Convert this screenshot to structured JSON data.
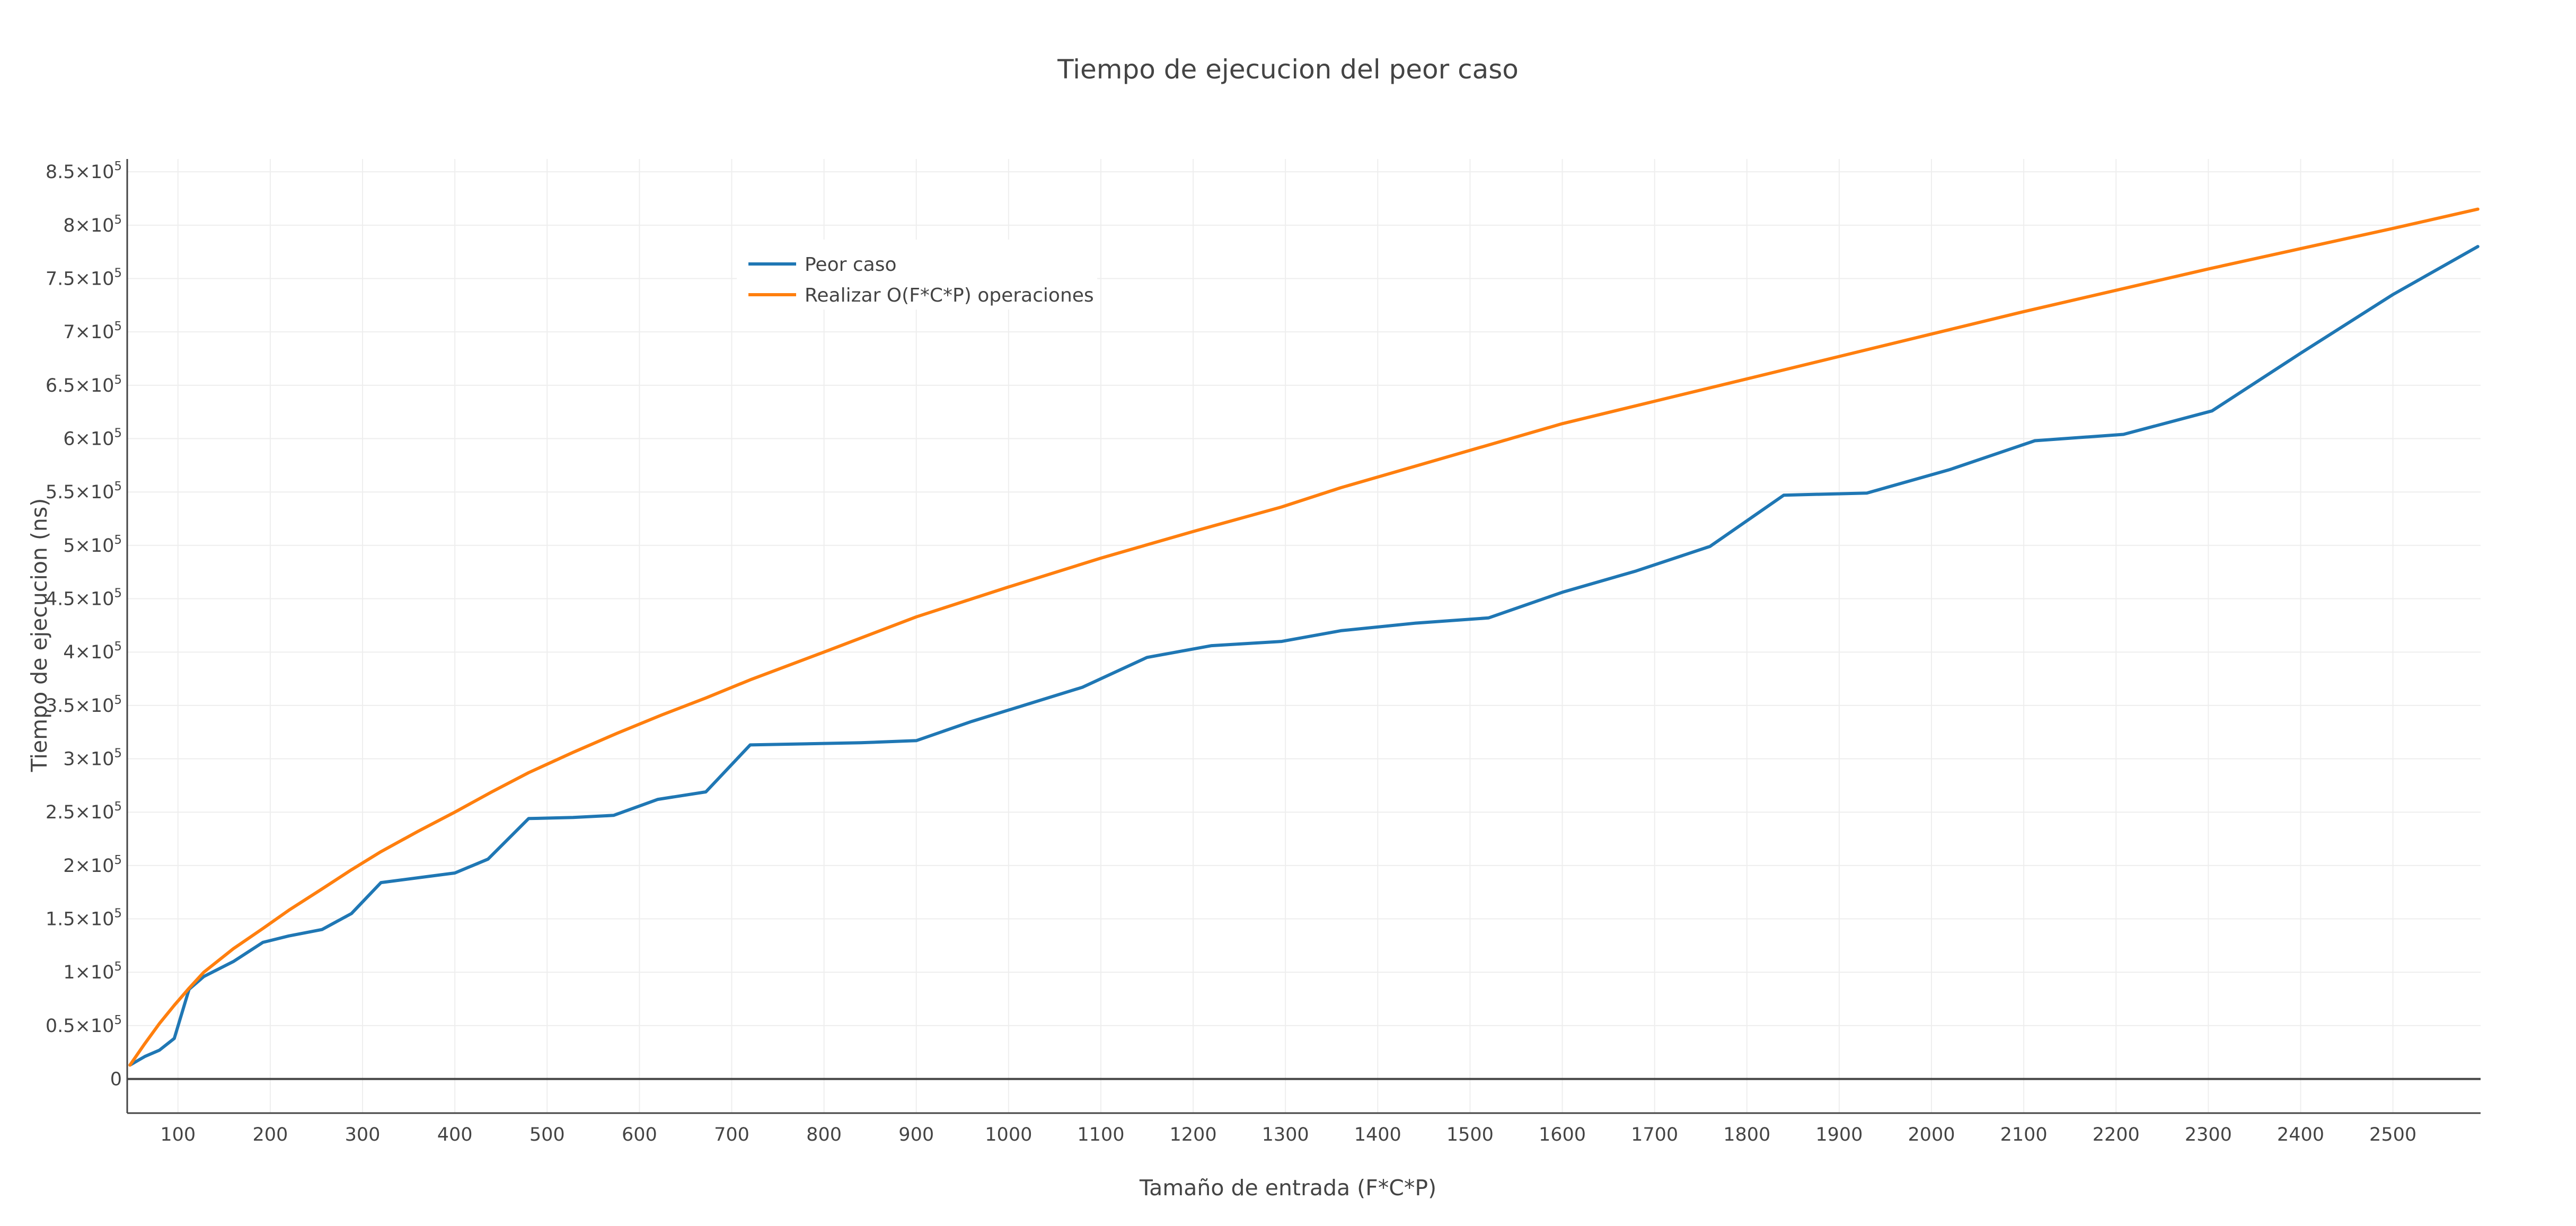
{
  "chart_data": {
    "type": "line",
    "title": "Tiempo de ejecucion del peor caso",
    "xlabel": "Tamaño de entrada (F*C*P)",
    "ylabel": "Tiempo de ejecucion (ns)",
    "xlim": [
      45,
      2595
    ],
    "ylim": [
      -32000,
      862000
    ],
    "grid": true,
    "legend_position": "top-left",
    "x_ticks": [
      100,
      200,
      300,
      400,
      500,
      600,
      700,
      800,
      900,
      1000,
      1100,
      1200,
      1300,
      1400,
      1500,
      1600,
      1700,
      1800,
      1900,
      2000,
      2100,
      2200,
      2300,
      2400,
      2500
    ],
    "x_tick_labels": [
      "100",
      "200",
      "300",
      "400",
      "500",
      "600",
      "700",
      "800",
      "900",
      "1000",
      "1100",
      "1200",
      "1300",
      "1400",
      "1500",
      "1600",
      "1700",
      "1800",
      "1900",
      "2000",
      "2100",
      "2200",
      "2300",
      "2400",
      "2500"
    ],
    "y_ticks": [
      {
        "value": 850000,
        "mantissa": "8.5",
        "exp": "5"
      },
      {
        "value": 800000,
        "mantissa": "8",
        "exp": "5"
      },
      {
        "value": 750000,
        "mantissa": "7.5",
        "exp": "5"
      },
      {
        "value": 700000,
        "mantissa": "7",
        "exp": "5"
      },
      {
        "value": 650000,
        "mantissa": "6.5",
        "exp": "5"
      },
      {
        "value": 600000,
        "mantissa": "6",
        "exp": "5"
      },
      {
        "value": 550000,
        "mantissa": "5.5",
        "exp": "5"
      },
      {
        "value": 500000,
        "mantissa": "5",
        "exp": "5"
      },
      {
        "value": 450000,
        "mantissa": "4.5",
        "exp": "5"
      },
      {
        "value": 400000,
        "mantissa": "4",
        "exp": "5"
      },
      {
        "value": 350000,
        "mantissa": "3.5",
        "exp": "5"
      },
      {
        "value": 300000,
        "mantissa": "3",
        "exp": "5"
      },
      {
        "value": 250000,
        "mantissa": "2.5",
        "exp": "5"
      },
      {
        "value": 200000,
        "mantissa": "2",
        "exp": "5"
      },
      {
        "value": 150000,
        "mantissa": "1.5",
        "exp": "5"
      },
      {
        "value": 100000,
        "mantissa": "1",
        "exp": "5"
      },
      {
        "value": 50000,
        "mantissa": "0.5",
        "exp": "5"
      },
      {
        "value": 0,
        "mantissa": "0",
        "exp": ""
      }
    ],
    "series": [
      {
        "name": "Peor caso",
        "color": "#1f77b4",
        "x": [
          48,
          64,
          80,
          96,
          112,
          128,
          160,
          192,
          220,
          256,
          288,
          320,
          400,
          436,
          480,
          528,
          572,
          620,
          672,
          720,
          840,
          900,
          960,
          1020,
          1080,
          1150,
          1220,
          1296,
          1360,
          1440,
          1520,
          1600,
          1680,
          1760,
          1840,
          1930,
          2020,
          2112,
          2208,
          2304,
          2400,
          2500,
          2592
        ],
        "y": [
          13000,
          21000,
          27000,
          38000,
          84000,
          96000,
          110000,
          128000,
          134000,
          140000,
          155000,
          184000,
          193000,
          206000,
          244000,
          245000,
          247000,
          262000,
          269000,
          313000,
          315000,
          317000,
          335000,
          351000,
          367000,
          395000,
          406000,
          410000,
          420000,
          427000,
          432000,
          456000,
          476000,
          499000,
          547000,
          549000,
          571000,
          598000,
          604000,
          626000,
          680000,
          735000,
          780000
        ]
      },
      {
        "name": "Realizar O(F*C*P) operaciones",
        "color": "#ff7f0e",
        "x": [
          48,
          64,
          80,
          96,
          112,
          128,
          160,
          192,
          220,
          256,
          288,
          320,
          360,
          400,
          440,
          480,
          528,
          576,
          624,
          672,
          720,
          800,
          900,
          1000,
          1100,
          1200,
          1296,
          1360,
          1440,
          1520,
          1600,
          1700,
          1800,
          1900,
          2000,
          2100,
          2200,
          2300,
          2400,
          2500,
          2592
        ],
        "y": [
          13000,
          33000,
          52000,
          69000,
          85000,
          100000,
          122000,
          141000,
          158000,
          178000,
          196000,
          213000,
          232000,
          250000,
          269000,
          287000,
          306000,
          324000,
          341000,
          357000,
          374000,
          400000,
          433000,
          461000,
          488000,
          513000,
          536000,
          554000,
          574000,
          594000,
          614000,
          635000,
          656000,
          677000,
          698000,
          719000,
          739000,
          759000,
          778000,
          797000,
          815000
        ]
      }
    ]
  }
}
